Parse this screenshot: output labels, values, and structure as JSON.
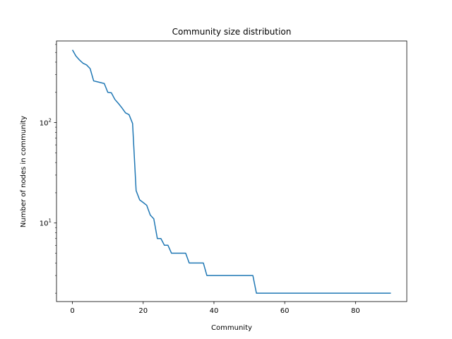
{
  "chart_data": {
    "type": "line",
    "title": "Community size distribution",
    "xlabel": "Community",
    "ylabel": "Number of nodes in community",
    "yscale": "log",
    "grid": false,
    "xlim": [
      -4.5,
      94.5
    ],
    "ylim": [
      1.65,
      650
    ],
    "x_ticks": [
      0,
      20,
      40,
      60,
      80
    ],
    "x_tick_labels": [
      "0",
      "20",
      "40",
      "60",
      "80"
    ],
    "y_ticks": [
      10,
      100
    ],
    "y_tick_labels": [
      "10^1",
      "10^2"
    ],
    "series": [
      {
        "color": "#1f77b4",
        "x": [
          0,
          1,
          2,
          3,
          4,
          5,
          6,
          7,
          8,
          9,
          10,
          11,
          12,
          13,
          14,
          15,
          16,
          17,
          18,
          19,
          20,
          21,
          22,
          23,
          24,
          25,
          26,
          27,
          28,
          29,
          30,
          31,
          32,
          33,
          34,
          35,
          36,
          37,
          38,
          39,
          40,
          41,
          42,
          43,
          44,
          45,
          46,
          47,
          48,
          49,
          50,
          51,
          52,
          53,
          54,
          55,
          56,
          57,
          58,
          59,
          60,
          61,
          62,
          63,
          64,
          65,
          66,
          67,
          68,
          69,
          70,
          71,
          72,
          73,
          74,
          75,
          76,
          77,
          78,
          79,
          80,
          81,
          82,
          83,
          84,
          85,
          86,
          87,
          88,
          89,
          90
        ],
        "y": [
          530,
          460,
          420,
          390,
          375,
          345,
          260,
          255,
          250,
          245,
          200,
          198,
          170,
          155,
          140,
          125,
          120,
          98,
          21,
          17,
          16,
          15,
          12,
          11,
          7,
          7,
          6,
          6,
          5,
          5,
          5,
          5,
          5,
          4,
          4,
          4,
          4,
          4,
          3,
          3,
          3,
          3,
          3,
          3,
          3,
          3,
          3,
          3,
          3,
          3,
          3,
          3,
          2,
          2,
          2,
          2,
          2,
          2,
          2,
          2,
          2,
          2,
          2,
          2,
          2,
          2,
          2,
          2,
          2,
          2,
          2,
          2,
          2,
          2,
          2,
          2,
          2,
          2,
          2,
          2,
          2,
          2,
          2,
          2,
          2,
          2,
          2,
          2,
          2,
          2,
          2
        ]
      }
    ]
  }
}
